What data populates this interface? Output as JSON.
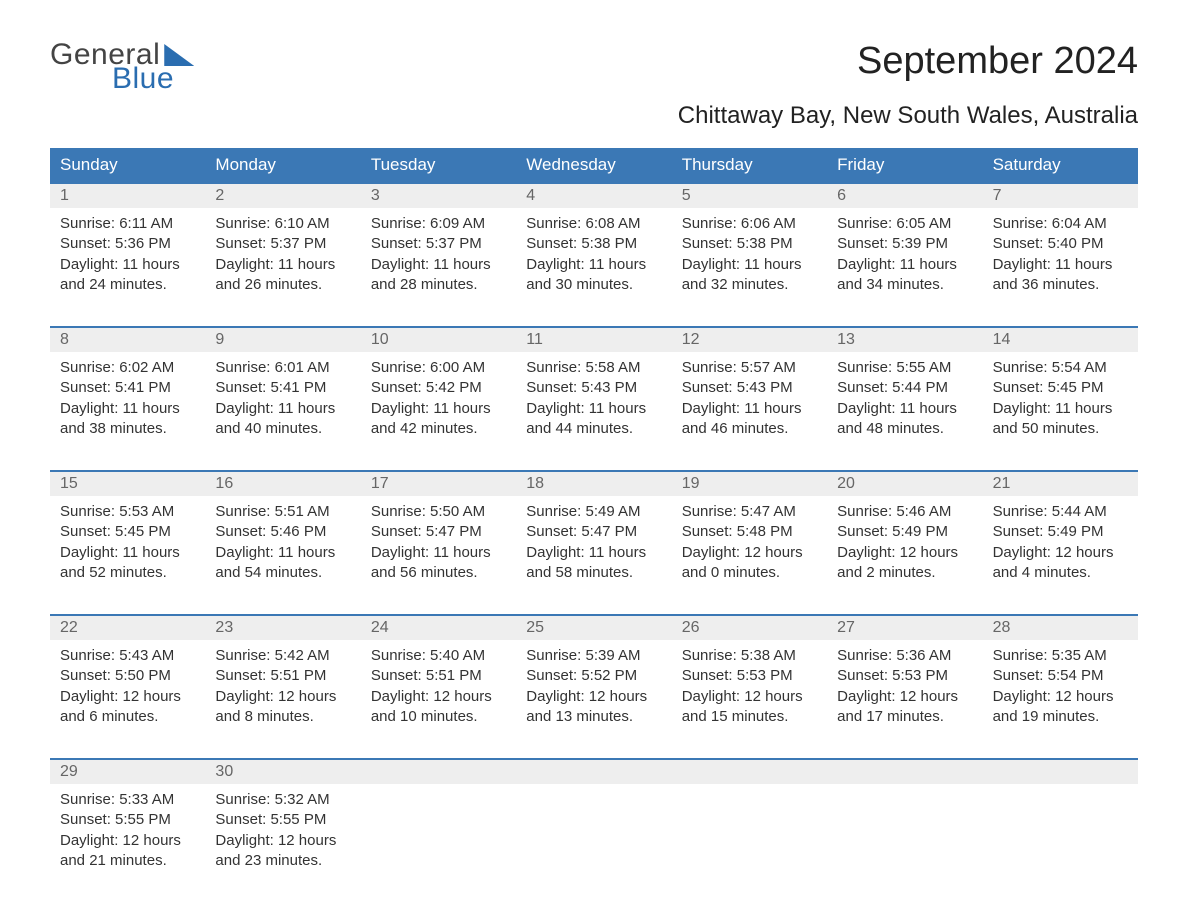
{
  "logo": {
    "text1": "General",
    "text2": "Blue"
  },
  "title": "September 2024",
  "subtitle": "Chittaway Bay, New South Wales, Australia",
  "colors": {
    "header_bg": "#3b78b5",
    "header_text": "#ffffff",
    "daynum_bg": "#eeeeee",
    "daynum_text": "#666666",
    "body_text": "#333333",
    "accent": "#2a6db0",
    "page_bg": "#ffffff"
  },
  "weekdays": [
    "Sunday",
    "Monday",
    "Tuesday",
    "Wednesday",
    "Thursday",
    "Friday",
    "Saturday"
  ],
  "weeks": [
    [
      {
        "n": "1",
        "sr": "Sunrise: 6:11 AM",
        "ss": "Sunset: 5:36 PM",
        "d1": "Daylight: 11 hours",
        "d2": "and 24 minutes."
      },
      {
        "n": "2",
        "sr": "Sunrise: 6:10 AM",
        "ss": "Sunset: 5:37 PM",
        "d1": "Daylight: 11 hours",
        "d2": "and 26 minutes."
      },
      {
        "n": "3",
        "sr": "Sunrise: 6:09 AM",
        "ss": "Sunset: 5:37 PM",
        "d1": "Daylight: 11 hours",
        "d2": "and 28 minutes."
      },
      {
        "n": "4",
        "sr": "Sunrise: 6:08 AM",
        "ss": "Sunset: 5:38 PM",
        "d1": "Daylight: 11 hours",
        "d2": "and 30 minutes."
      },
      {
        "n": "5",
        "sr": "Sunrise: 6:06 AM",
        "ss": "Sunset: 5:38 PM",
        "d1": "Daylight: 11 hours",
        "d2": "and 32 minutes."
      },
      {
        "n": "6",
        "sr": "Sunrise: 6:05 AM",
        "ss": "Sunset: 5:39 PM",
        "d1": "Daylight: 11 hours",
        "d2": "and 34 minutes."
      },
      {
        "n": "7",
        "sr": "Sunrise: 6:04 AM",
        "ss": "Sunset: 5:40 PM",
        "d1": "Daylight: 11 hours",
        "d2": "and 36 minutes."
      }
    ],
    [
      {
        "n": "8",
        "sr": "Sunrise: 6:02 AM",
        "ss": "Sunset: 5:41 PM",
        "d1": "Daylight: 11 hours",
        "d2": "and 38 minutes."
      },
      {
        "n": "9",
        "sr": "Sunrise: 6:01 AM",
        "ss": "Sunset: 5:41 PM",
        "d1": "Daylight: 11 hours",
        "d2": "and 40 minutes."
      },
      {
        "n": "10",
        "sr": "Sunrise: 6:00 AM",
        "ss": "Sunset: 5:42 PM",
        "d1": "Daylight: 11 hours",
        "d2": "and 42 minutes."
      },
      {
        "n": "11",
        "sr": "Sunrise: 5:58 AM",
        "ss": "Sunset: 5:43 PM",
        "d1": "Daylight: 11 hours",
        "d2": "and 44 minutes."
      },
      {
        "n": "12",
        "sr": "Sunrise: 5:57 AM",
        "ss": "Sunset: 5:43 PM",
        "d1": "Daylight: 11 hours",
        "d2": "and 46 minutes."
      },
      {
        "n": "13",
        "sr": "Sunrise: 5:55 AM",
        "ss": "Sunset: 5:44 PM",
        "d1": "Daylight: 11 hours",
        "d2": "and 48 minutes."
      },
      {
        "n": "14",
        "sr": "Sunrise: 5:54 AM",
        "ss": "Sunset: 5:45 PM",
        "d1": "Daylight: 11 hours",
        "d2": "and 50 minutes."
      }
    ],
    [
      {
        "n": "15",
        "sr": "Sunrise: 5:53 AM",
        "ss": "Sunset: 5:45 PM",
        "d1": "Daylight: 11 hours",
        "d2": "and 52 minutes."
      },
      {
        "n": "16",
        "sr": "Sunrise: 5:51 AM",
        "ss": "Sunset: 5:46 PM",
        "d1": "Daylight: 11 hours",
        "d2": "and 54 minutes."
      },
      {
        "n": "17",
        "sr": "Sunrise: 5:50 AM",
        "ss": "Sunset: 5:47 PM",
        "d1": "Daylight: 11 hours",
        "d2": "and 56 minutes."
      },
      {
        "n": "18",
        "sr": "Sunrise: 5:49 AM",
        "ss": "Sunset: 5:47 PM",
        "d1": "Daylight: 11 hours",
        "d2": "and 58 minutes."
      },
      {
        "n": "19",
        "sr": "Sunrise: 5:47 AM",
        "ss": "Sunset: 5:48 PM",
        "d1": "Daylight: 12 hours",
        "d2": "and 0 minutes."
      },
      {
        "n": "20",
        "sr": "Sunrise: 5:46 AM",
        "ss": "Sunset: 5:49 PM",
        "d1": "Daylight: 12 hours",
        "d2": "and 2 minutes."
      },
      {
        "n": "21",
        "sr": "Sunrise: 5:44 AM",
        "ss": "Sunset: 5:49 PM",
        "d1": "Daylight: 12 hours",
        "d2": "and 4 minutes."
      }
    ],
    [
      {
        "n": "22",
        "sr": "Sunrise: 5:43 AM",
        "ss": "Sunset: 5:50 PM",
        "d1": "Daylight: 12 hours",
        "d2": "and 6 minutes."
      },
      {
        "n": "23",
        "sr": "Sunrise: 5:42 AM",
        "ss": "Sunset: 5:51 PM",
        "d1": "Daylight: 12 hours",
        "d2": "and 8 minutes."
      },
      {
        "n": "24",
        "sr": "Sunrise: 5:40 AM",
        "ss": "Sunset: 5:51 PM",
        "d1": "Daylight: 12 hours",
        "d2": "and 10 minutes."
      },
      {
        "n": "25",
        "sr": "Sunrise: 5:39 AM",
        "ss": "Sunset: 5:52 PM",
        "d1": "Daylight: 12 hours",
        "d2": "and 13 minutes."
      },
      {
        "n": "26",
        "sr": "Sunrise: 5:38 AM",
        "ss": "Sunset: 5:53 PM",
        "d1": "Daylight: 12 hours",
        "d2": "and 15 minutes."
      },
      {
        "n": "27",
        "sr": "Sunrise: 5:36 AM",
        "ss": "Sunset: 5:53 PM",
        "d1": "Daylight: 12 hours",
        "d2": "and 17 minutes."
      },
      {
        "n": "28",
        "sr": "Sunrise: 5:35 AM",
        "ss": "Sunset: 5:54 PM",
        "d1": "Daylight: 12 hours",
        "d2": "and 19 minutes."
      }
    ],
    [
      {
        "n": "29",
        "sr": "Sunrise: 5:33 AM",
        "ss": "Sunset: 5:55 PM",
        "d1": "Daylight: 12 hours",
        "d2": "and 21 minutes."
      },
      {
        "n": "30",
        "sr": "Sunrise: 5:32 AM",
        "ss": "Sunset: 5:55 PM",
        "d1": "Daylight: 12 hours",
        "d2": "and 23 minutes."
      },
      null,
      null,
      null,
      null,
      null
    ]
  ]
}
